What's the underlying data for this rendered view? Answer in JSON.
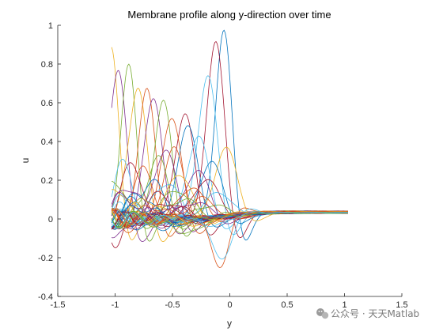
{
  "chart_data": {
    "type": "line",
    "title": "Membrane profile along y-direction over time",
    "xlabel": "y",
    "ylabel": "u",
    "xlim": [
      -1.5,
      1.5
    ],
    "ylim": [
      -0.4,
      1.0
    ],
    "xticks": [
      -1.5,
      -1,
      -0.5,
      0,
      0.5,
      1,
      1.5
    ],
    "xtick_labels": [
      "-1.5",
      "-1",
      "-0.5",
      "0",
      "0.5",
      "1",
      "1.5"
    ],
    "yticks": [
      -0.4,
      -0.2,
      0,
      0.2,
      0.4,
      0.6,
      0.8,
      1.0
    ],
    "ytick_labels": [
      "-0.4",
      "-0.2",
      "0",
      "0.2",
      "0.4",
      "0.6",
      "0.8",
      "1"
    ],
    "grid": false,
    "legend": "none",
    "domain": [
      -1.03,
      1.03
    ],
    "series_count": 60,
    "series": [
      {
        "color": "#0072BD",
        "peak_y": -0.05,
        "peak_u": 0.98,
        "width": 0.1
      },
      {
        "color": "#A2142F",
        "peak_y": -0.12,
        "peak_u": 0.92,
        "width": 0.11
      },
      {
        "color": "#EDB120",
        "peak_y": -1.03,
        "peak_u": 0.86,
        "width": 0.1
      },
      {
        "color": "#7E2F8E",
        "peak_y": -0.97,
        "peak_u": 0.83,
        "width": 0.1
      },
      {
        "color": "#77AC30",
        "peak_y": -0.88,
        "peak_u": 0.77,
        "width": 0.1
      },
      {
        "color": "#4DBEEE",
        "peak_y": -0.19,
        "peak_u": 0.74,
        "width": 0.12
      },
      {
        "color": "#EDB120",
        "peak_y": -0.8,
        "peak_u": 0.72,
        "width": 0.11
      },
      {
        "color": "#D95319",
        "peak_y": -0.72,
        "peak_u": 0.66,
        "width": 0.11
      },
      {
        "color": "#7E2F8E",
        "peak_y": -0.66,
        "peak_u": 0.64,
        "width": 0.11
      },
      {
        "color": "#77AC30",
        "peak_y": -0.58,
        "peak_u": 0.61,
        "width": 0.11
      },
      {
        "color": "#A2142F",
        "peak_y": -0.39,
        "peak_u": 0.56,
        "width": 0.12
      },
      {
        "color": "#D95319",
        "peak_y": -0.5,
        "peak_u": 0.54,
        "width": 0.12
      },
      {
        "color": "#0072BD",
        "peak_y": -0.36,
        "peak_u": 0.47,
        "width": 0.13
      },
      {
        "color": "#4DBEEE",
        "peak_y": -0.27,
        "peak_u": 0.44,
        "width": 0.13
      },
      {
        "color": "#7E2F8E",
        "peak_y": -0.56,
        "peak_u": 0.38,
        "width": 0.13
      },
      {
        "color": "#D95319",
        "peak_y": -0.48,
        "peak_u": 0.36,
        "width": 0.13
      },
      {
        "color": "#EDB120",
        "peak_y": -0.03,
        "peak_u": 0.35,
        "width": 0.14
      },
      {
        "color": "#77AC30",
        "peak_y": -0.63,
        "peak_u": 0.33,
        "width": 0.13
      },
      {
        "color": "#0072BD",
        "peak_y": -0.16,
        "peak_u": 0.3,
        "width": 0.14
      },
      {
        "color": "#A2142F",
        "peak_y": -0.84,
        "peak_u": 0.28,
        "width": 0.13
      },
      {
        "color": "#4DBEEE",
        "peak_y": -0.92,
        "peak_u": 0.27,
        "width": 0.13
      },
      {
        "color": "#7E2F8E",
        "peak_y": -0.28,
        "peak_u": 0.26,
        "width": 0.15
      },
      {
        "color": "#D95319",
        "peak_y": -0.75,
        "peak_u": 0.25,
        "width": 0.14
      },
      {
        "color": "#EDB120",
        "peak_y": -0.43,
        "peak_u": 0.23,
        "width": 0.15
      },
      {
        "color": "#77AC30",
        "peak_y": -0.99,
        "peak_u": 0.22,
        "width": 0.12
      },
      {
        "color": "#0072BD",
        "peak_y": -0.68,
        "peak_u": 0.21,
        "width": 0.15
      },
      {
        "color": "#A2142F",
        "peak_y": -0.2,
        "peak_u": 0.2,
        "width": 0.16
      },
      {
        "color": "#4DBEEE",
        "peak_y": -0.54,
        "peak_u": 0.19,
        "width": 0.15
      },
      {
        "color": "#7E2F8E",
        "peak_y": -0.86,
        "peak_u": 0.18,
        "width": 0.14
      },
      {
        "color": "#D95319",
        "peak_y": -0.33,
        "peak_u": 0.17,
        "width": 0.16
      },
      {
        "color": "#EDB120",
        "peak_y": -0.95,
        "peak_u": 0.16,
        "width": 0.13
      },
      {
        "color": "#77AC30",
        "peak_y": -0.46,
        "peak_u": 0.15,
        "width": 0.16
      },
      {
        "color": "#0072BD",
        "peak_y": -0.77,
        "peak_u": 0.14,
        "width": 0.15
      },
      {
        "color": "#A2142F",
        "peak_y": -0.6,
        "peak_u": 0.13,
        "width": 0.16
      },
      {
        "color": "#4DBEEE",
        "peak_y": -0.1,
        "peak_u": 0.12,
        "width": 0.17
      },
      {
        "color": "#7E2F8E",
        "peak_y": -0.9,
        "peak_u": 0.12,
        "width": 0.14
      },
      {
        "color": "#D95319",
        "peak_y": -0.24,
        "peak_u": 0.11,
        "width": 0.17
      },
      {
        "color": "#EDB120",
        "peak_y": -0.7,
        "peak_u": 0.1,
        "width": 0.16
      },
      {
        "color": "#77AC30",
        "peak_y": -0.4,
        "peak_u": 0.1,
        "width": 0.17
      },
      {
        "color": "#0072BD",
        "peak_y": -0.82,
        "peak_u": 0.09,
        "width": 0.15
      },
      {
        "color": "#A2142F",
        "peak_y": -0.52,
        "peak_u": 0.09,
        "width": 0.17
      },
      {
        "color": "#4DBEEE",
        "peak_y": -0.96,
        "peak_u": 0.08,
        "width": 0.14
      },
      {
        "color": "#7E2F8E",
        "peak_y": -0.3,
        "peak_u": 0.08,
        "width": 0.18
      },
      {
        "color": "#D95319",
        "peak_y": -0.64,
        "peak_u": 0.07,
        "width": 0.17
      },
      {
        "color": "#EDB120",
        "peak_y": -0.87,
        "peak_u": 0.07,
        "width": 0.15
      },
      {
        "color": "#77AC30",
        "peak_y": -0.15,
        "peak_u": 0.06,
        "width": 0.18
      },
      {
        "color": "#0072BD",
        "peak_y": -0.74,
        "peak_u": 0.06,
        "width": 0.16
      },
      {
        "color": "#A2142F",
        "peak_y": -0.44,
        "peak_u": 0.06,
        "width": 0.18
      },
      {
        "color": "#4DBEEE",
        "peak_y": -1.0,
        "peak_u": 0.05,
        "width": 0.14
      },
      {
        "color": "#7E2F8E",
        "peak_y": -0.57,
        "peak_u": 0.05,
        "width": 0.18
      },
      {
        "color": "#D95319",
        "peak_y": -0.08,
        "peak_u": -0.26,
        "width": 0.11
      },
      {
        "color": "#4DBEEE",
        "peak_y": -0.06,
        "peak_u": -0.22,
        "width": 0.12
      },
      {
        "color": "#77AC30",
        "peak_y": -0.35,
        "peak_u": -0.08,
        "width": 0.17
      },
      {
        "color": "#A2142F",
        "peak_y": -0.98,
        "peak_u": -0.11,
        "width": 0.1
      },
      {
        "color": "#7E2F8E",
        "peak_y": -0.93,
        "peak_u": -0.09,
        "width": 0.12
      },
      {
        "color": "#0072BD",
        "peak_y": -0.65,
        "peak_u": -0.05,
        "width": 0.17
      },
      {
        "color": "#EDB120",
        "peak_y": -0.25,
        "peak_u": -0.04,
        "width": 0.18
      },
      {
        "color": "#D95319",
        "peak_y": -0.8,
        "peak_u": -0.05,
        "width": 0.15
      },
      {
        "color": "#77AC30",
        "peak_y": -0.5,
        "peak_u": -0.03,
        "width": 0.18
      },
      {
        "color": "#4DBEEE",
        "peak_y": -0.12,
        "peak_u": -0.04,
        "width": 0.18
      }
    ]
  },
  "watermark": {
    "icon": "wechat-icon",
    "text": "公众号 · 天天Matlab"
  }
}
